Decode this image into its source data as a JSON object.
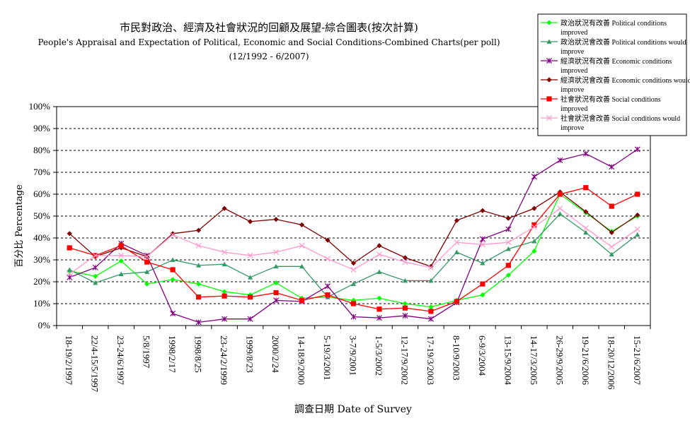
{
  "chart_data": {
    "type": "line",
    "title": "市民對政治、經濟及社會狀況的回顧及展望-綜合圖表(按次計算)",
    "subtitle": "People's Appraisal and Expectation of Political, Economic and Social Conditions-Combined Charts(per poll)",
    "subtitle2": "(12/1992 - 6/2007)",
    "xlabel": "調查日期 Date of Survey",
    "ylabel": "百分比 Percentage",
    "ylim": [
      0,
      100
    ],
    "yticks": [
      "0%",
      "10%",
      "20%",
      "30%",
      "40%",
      "50%",
      "60%",
      "70%",
      "80%",
      "90%",
      "100%"
    ],
    "grid": true,
    "legend_position": "top-right",
    "categories": [
      "18-19/2/1997",
      "22/4-15/5/1997",
      "23-24/6/1997",
      "5/8/1997",
      "1998/2/17",
      "1998/8/25",
      "23-24/2/1999",
      "1999/8/23",
      "2000/2/24",
      "14-18/9/2000",
      "5-19/3/2001",
      "3-7/9/2001",
      "1-5/3/2002",
      "12-17/9/2002",
      "17-19/3/2003",
      "8-10/9/2003",
      "6-9/3/2004",
      "13-15/9/2004",
      "14-17/3/2005",
      "26-29/9/2005",
      "19-21/6/2006",
      "18-20/12/2006",
      "15-21/6/2007"
    ],
    "series": [
      {
        "name": "政治狀況有改善 Political conditions improved",
        "color": "#00ff00",
        "marker": "diamond",
        "values": [
          25,
          22.5,
          29.5,
          19,
          21,
          19,
          15.5,
          14,
          19.5,
          12.5,
          13,
          11.5,
          12.5,
          10,
          8.5,
          11.5,
          14,
          23,
          34,
          60,
          51.5,
          43,
          50
        ]
      },
      {
        "name": "政治狀況會改善 Political conditions would improve",
        "color": "#339966",
        "marker": "triangle",
        "values": [
          25.5,
          19.5,
          23.5,
          24.5,
          30,
          27.5,
          28,
          22,
          27,
          27,
          13,
          19,
          24.5,
          20.5,
          20.5,
          33.5,
          28.5,
          35,
          38.5,
          51,
          42.5,
          32.5,
          41.5
        ]
      },
      {
        "name": "經濟狀況有改善 Economic conditions improved",
        "color": "#800080",
        "marker": "star",
        "values": [
          22,
          26.5,
          37.5,
          32,
          5.5,
          1.5,
          3,
          3,
          11.5,
          11,
          18,
          4,
          3.5,
          4.5,
          3,
          10.5,
          39.5,
          44,
          68,
          75.5,
          78.5,
          72.5,
          80.5
        ]
      },
      {
        "name": "經濟狀況會改善 Economic conditions would improve",
        "color": "#800000",
        "marker": "diamond",
        "values": [
          42,
          31.5,
          35.5,
          31.5,
          42,
          43.5,
          53.5,
          47.5,
          48.5,
          46,
          39,
          28.5,
          36.5,
          31,
          27,
          48,
          52.5,
          49,
          53.5,
          61,
          52,
          42.5,
          50.5
        ]
      },
      {
        "name": "社會狀況有改善 Social conditions improved",
        "color": "#ff0000",
        "marker": "square",
        "values": [
          35.5,
          32,
          36.5,
          29,
          25.5,
          13,
          13.5,
          13,
          15,
          11.5,
          14,
          10,
          7.5,
          8,
          6.5,
          11,
          19,
          27.5,
          46,
          60,
          63,
          54.5,
          60
        ]
      },
      {
        "name": "社會狀況會改善 Social conditions would improve",
        "color": "#ff99cc",
        "marker": "x",
        "values": [
          23.5,
          32,
          32,
          31.5,
          41.5,
          36.5,
          33.5,
          32,
          33.5,
          36.5,
          30.5,
          25.5,
          32.5,
          29,
          26.5,
          38,
          37,
          38,
          45,
          53.5,
          44.5,
          36,
          44
        ]
      }
    ]
  }
}
